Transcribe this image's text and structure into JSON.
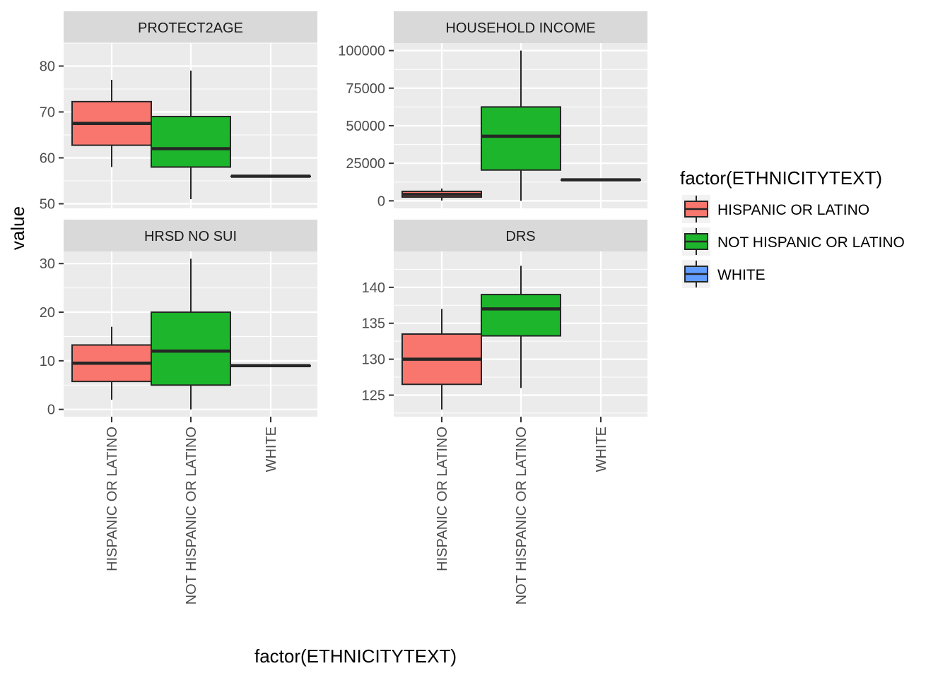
{
  "chart_data": {
    "type": "boxplot",
    "xlabel": "factor(ETHNICITYTEXT)",
    "ylabel": "value",
    "categories": [
      "HISPANIC OR LATINO",
      "NOT HISPANIC OR LATINO",
      "WHITE"
    ],
    "legend": {
      "title": "factor(ETHNICITYTEXT)",
      "placement": "right",
      "entries": [
        {
          "label": "HISPANIC OR LATINO",
          "color": "#F8766D"
        },
        {
          "label": "NOT HISPANIC OR LATINO",
          "color": "#1DB52C"
        },
        {
          "label": "WHITE",
          "color": "#619CFF"
        }
      ]
    },
    "facets": [
      {
        "title": "PROTECT2AGE",
        "ylim": [
          49,
          85
        ],
        "yticks": [
          50,
          60,
          70,
          80
        ],
        "yticklabels": [
          "50",
          "60",
          "70",
          "80"
        ],
        "boxes": [
          {
            "category": "HISPANIC OR LATINO",
            "min": 58,
            "q1": 62.75,
            "median": 67.5,
            "q3": 72.25,
            "max": 77
          },
          {
            "category": "NOT HISPANIC OR LATINO",
            "min": 51,
            "q1": 58,
            "median": 62,
            "q3": 69,
            "max": 79
          },
          {
            "category": "WHITE",
            "min": 56,
            "q1": 56,
            "median": 56,
            "q3": 56,
            "max": 56
          }
        ]
      },
      {
        "title": "HOUSEHOLD INCOME",
        "ylim": [
          -5000,
          105000
        ],
        "yticks": [
          0,
          25000,
          50000,
          75000,
          100000
        ],
        "yticklabels": [
          "0",
          "25000",
          "50000",
          "75000",
          "100000"
        ],
        "boxes": [
          {
            "category": "HISPANIC OR LATINO",
            "min": 200,
            "q1": 2500,
            "median": 4200,
            "q3": 6300,
            "max": 8200
          },
          {
            "category": "NOT HISPANIC OR LATINO",
            "min": 0,
            "q1": 20500,
            "median": 43000,
            "q3": 62500,
            "max": 100000
          },
          {
            "category": "WHITE",
            "min": 14000,
            "q1": 14000,
            "median": 14000,
            "q3": 14000,
            "max": 14000
          }
        ]
      },
      {
        "title": "HRSD NO SUI",
        "ylim": [
          -1.5,
          32.5
        ],
        "yticks": [
          0,
          10,
          20,
          30
        ],
        "yticklabels": [
          "0",
          "10",
          "20",
          "30"
        ],
        "boxes": [
          {
            "category": "HISPANIC OR LATINO",
            "min": 2,
            "q1": 5.75,
            "median": 9.5,
            "q3": 13.25,
            "max": 17
          },
          {
            "category": "NOT HISPANIC OR LATINO",
            "min": 0,
            "q1": 5,
            "median": 12,
            "q3": 20,
            "max": 31
          },
          {
            "category": "WHITE",
            "min": 9,
            "q1": 9,
            "median": 9,
            "q3": 9,
            "max": 9
          }
        ]
      },
      {
        "title": "DRS",
        "ylim": [
          122,
          145
        ],
        "yticks": [
          125,
          130,
          135,
          140
        ],
        "yticklabels": [
          "125",
          "130",
          "135",
          "140"
        ],
        "boxes": [
          {
            "category": "HISPANIC OR LATINO",
            "min": 123,
            "q1": 126.5,
            "median": 130,
            "q3": 133.5,
            "max": 137
          },
          {
            "category": "NOT HISPANIC OR LATINO",
            "min": 126,
            "q1": 133.25,
            "median": 137,
            "q3": 139,
            "max": 143
          }
        ]
      }
    ]
  }
}
